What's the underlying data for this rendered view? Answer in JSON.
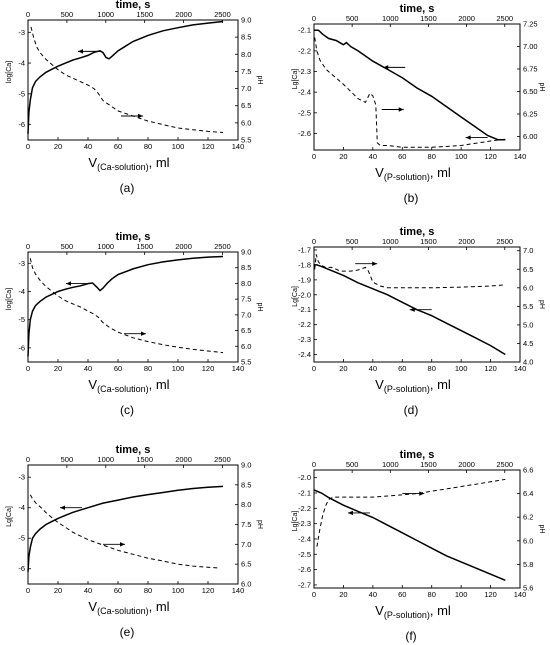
{
  "chart_data": [
    {
      "id": "a",
      "type": "line",
      "panel_label": "(a)",
      "top_title": "time, s",
      "xlabel_main": "V",
      "xlabel_sub": "(Ca-solution)",
      "xlabel_unit": ", ml",
      "ylabel_left": "log[Ca]",
      "ylabel_right": "pH",
      "xlim": [
        0,
        140
      ],
      "xticks": [
        "0",
        "20",
        "40",
        "60",
        "80",
        "100",
        "120",
        "140"
      ],
      "topxlim": [
        0,
        2700
      ],
      "topticks": [
        "0",
        "500",
        "1000",
        "1500",
        "2000",
        "2500"
      ],
      "ylim_left": [
        -6.5,
        -2.6
      ],
      "yticks_left": [
        "-6",
        "-5",
        "-4",
        "-3"
      ],
      "ylim_right": [
        5.5,
        9.0
      ],
      "yticks_right": [
        "5.5",
        "6.0",
        "6.5",
        "7.0",
        "7.5",
        "8.0",
        "8.5",
        "9.0"
      ],
      "series": [
        {
          "axis": "left",
          "style": "solid",
          "x": [
            0,
            0.6,
            1.5,
            3,
            5,
            8,
            12,
            16,
            20,
            25,
            30,
            35,
            40,
            44,
            48,
            50,
            52,
            54,
            56,
            60,
            65,
            70,
            80,
            90,
            100,
            110,
            120,
            130
          ],
          "y": [
            -6.3,
            -5.6,
            -5.2,
            -4.8,
            -4.6,
            -4.45,
            -4.3,
            -4.2,
            -4.1,
            -4.0,
            -3.9,
            -3.83,
            -3.75,
            -3.65,
            -3.6,
            -3.66,
            -3.82,
            -3.86,
            -3.78,
            -3.6,
            -3.45,
            -3.3,
            -3.1,
            -2.95,
            -2.85,
            -2.76,
            -2.7,
            -2.65
          ]
        },
        {
          "axis": "right",
          "style": "dashed",
          "x": [
            2,
            4,
            6,
            8,
            12,
            16,
            20,
            25,
            30,
            35,
            40,
            44,
            47,
            50,
            55,
            60,
            70,
            80,
            90,
            100,
            110,
            120,
            130
          ],
          "y": [
            8.8,
            8.45,
            8.2,
            8.05,
            7.85,
            7.7,
            7.55,
            7.4,
            7.3,
            7.2,
            7.1,
            7.0,
            6.85,
            6.65,
            6.5,
            6.35,
            6.2,
            6.05,
            5.95,
            5.85,
            5.8,
            5.75,
            5.72
          ]
        }
      ],
      "arrows": [
        {
          "x": 48,
          "y": -3.62,
          "dir": "left"
        },
        {
          "x": 62,
          "y": 6.2,
          "dir": "right",
          "axis": "right"
        }
      ]
    },
    {
      "id": "b",
      "type": "line",
      "panel_label": "(b)",
      "top_title": "time, s",
      "xlabel_main": "V",
      "xlabel_sub": "(P-solution)",
      "xlabel_unit": ", ml",
      "ylabel_left": "Lg[Ca]",
      "ylabel_right": "pH",
      "xlim": [
        0,
        140
      ],
      "xticks": [
        "0",
        "20",
        "40",
        "60",
        "80",
        "100",
        "120",
        "140"
      ],
      "topxlim": [
        0,
        2700
      ],
      "topticks": [
        "0",
        "500",
        "1000",
        "1500",
        "2000",
        "2500"
      ],
      "ylim_left": [
        -2.68,
        -2.07
      ],
      "yticks_left": [
        "-2.1",
        "-2.2",
        "-2.3",
        "-2.4",
        "-2.5",
        "-2.6"
      ],
      "ylim_right": [
        5.85,
        7.25
      ],
      "yticks_right": [
        "6.00",
        "6.25",
        "6.50",
        "6.75",
        "7.00",
        "7.25"
      ],
      "series": [
        {
          "axis": "left",
          "style": "solid",
          "x": [
            0,
            3,
            6,
            10,
            15,
            20,
            22,
            25,
            30,
            40,
            50,
            60,
            70,
            80,
            90,
            100,
            110,
            118,
            125,
            130
          ],
          "y": [
            -2.1,
            -2.1,
            -2.12,
            -2.14,
            -2.15,
            -2.17,
            -2.16,
            -2.18,
            -2.2,
            -2.25,
            -2.29,
            -2.33,
            -2.38,
            -2.42,
            -2.47,
            -2.52,
            -2.57,
            -2.61,
            -2.63,
            -2.63
          ]
        },
        {
          "axis": "right",
          "style": "dashed",
          "x": [
            0.5,
            2,
            4,
            6,
            8,
            10,
            15,
            20,
            25,
            30,
            35,
            38,
            40,
            42,
            43,
            45,
            50,
            60,
            80,
            100,
            120,
            130
          ],
          "y": [
            7.1,
            6.95,
            6.85,
            6.8,
            6.75,
            6.72,
            6.65,
            6.58,
            6.5,
            6.42,
            6.38,
            6.48,
            6.45,
            6.35,
            5.93,
            5.9,
            5.9,
            5.88,
            5.88,
            5.9,
            5.95,
            5.97
          ]
        }
      ],
      "arrows": [
        {
          "x": 62,
          "y": -2.28,
          "dir": "left"
        },
        {
          "x": 46,
          "y": 6.3,
          "dir": "right",
          "axis": "right"
        },
        {
          "x": 118,
          "y": -2.62,
          "dir": "left"
        }
      ]
    },
    {
      "id": "c",
      "type": "line",
      "panel_label": "(c)",
      "top_title": "time, s",
      "xlabel_main": "V",
      "xlabel_sub": "(Ca-solution)",
      "xlabel_unit": ", ml",
      "ylabel_left": "log[Ca]",
      "ylabel_right": "pH",
      "xlim": [
        0,
        140
      ],
      "xticks": [
        "0",
        "20",
        "40",
        "60",
        "80",
        "100",
        "120",
        "140"
      ],
      "topxlim": [
        0,
        2700
      ],
      "topticks": [
        "0",
        "500",
        "1000",
        "1500",
        "2000",
        "2500"
      ],
      "ylim_left": [
        -6.5,
        -2.6
      ],
      "yticks_left": [
        "-6",
        "-5",
        "-4",
        "-3"
      ],
      "ylim_right": [
        5.5,
        9.0
      ],
      "yticks_right": [
        "5.5",
        "6.0",
        "6.5",
        "7.0",
        "7.5",
        "8.0",
        "8.5",
        "9.0"
      ],
      "series": [
        {
          "axis": "left",
          "style": "solid",
          "x": [
            0,
            0.6,
            1.5,
            3,
            5,
            8,
            12,
            16,
            20,
            25,
            30,
            35,
            40,
            43,
            46,
            48,
            50,
            53,
            56,
            60,
            70,
            80,
            90,
            100,
            110,
            120,
            130
          ],
          "y": [
            -6.3,
            -5.5,
            -5.0,
            -4.7,
            -4.5,
            -4.35,
            -4.2,
            -4.1,
            -4.0,
            -3.92,
            -3.85,
            -3.8,
            -3.72,
            -3.7,
            -3.85,
            -3.97,
            -3.88,
            -3.7,
            -3.55,
            -3.4,
            -3.2,
            -3.05,
            -2.95,
            -2.88,
            -2.82,
            -2.78,
            -2.76
          ]
        },
        {
          "axis": "right",
          "style": "dashed",
          "x": [
            1.5,
            3,
            5,
            8,
            12,
            16,
            20,
            25,
            30,
            35,
            40,
            44,
            47,
            50,
            55,
            60,
            70,
            80,
            90,
            100,
            110,
            120,
            130
          ],
          "y": [
            8.8,
            8.5,
            8.3,
            8.1,
            7.9,
            7.75,
            7.6,
            7.45,
            7.35,
            7.25,
            7.12,
            7.02,
            6.92,
            6.75,
            6.58,
            6.45,
            6.27,
            6.15,
            6.05,
            5.97,
            5.9,
            5.85,
            5.8
          ]
        }
      ],
      "arrows": [
        {
          "x": 40,
          "y": -3.72,
          "dir": "left"
        },
        {
          "x": 64,
          "y": 6.4,
          "dir": "right",
          "axis": "right"
        }
      ]
    },
    {
      "id": "d",
      "type": "line",
      "panel_label": "(d)",
      "top_title": "time, s",
      "xlabel_main": "V",
      "xlabel_sub": "(P-solution)",
      "xlabel_unit": ", ml",
      "ylabel_left": "Lg[Ca]",
      "ylabel_right": "pH",
      "xlim": [
        0,
        140
      ],
      "xticks": [
        "0",
        "20",
        "40",
        "60",
        "80",
        "100",
        "120",
        "140"
      ],
      "topxlim": [
        0,
        2700
      ],
      "topticks": [
        "0",
        "500",
        "1000",
        "1500",
        "2000",
        "2500"
      ],
      "ylim_left": [
        -2.45,
        -1.68
      ],
      "yticks_left": [
        "-1.7",
        "-1.8",
        "-1.9",
        "-2.0",
        "-2.1",
        "-2.2",
        "-2.3",
        "-2.4"
      ],
      "ylim_right": [
        4.0,
        7.1
      ],
      "yticks_right": [
        "4.0",
        "4.5",
        "5.0",
        "5.5",
        "6.0",
        "6.5",
        "7.0"
      ],
      "series": [
        {
          "axis": "left",
          "style": "solid",
          "x": [
            0,
            2,
            5,
            10,
            20,
            30,
            40,
            50,
            60,
            70,
            80,
            90,
            100,
            110,
            120,
            130
          ],
          "y": [
            -1.8,
            -1.8,
            -1.81,
            -1.83,
            -1.87,
            -1.92,
            -1.96,
            -2.0,
            -2.05,
            -2.1,
            -2.14,
            -2.19,
            -2.24,
            -2.29,
            -2.34,
            -2.4
          ]
        },
        {
          "axis": "right",
          "style": "dashed",
          "x": [
            0.5,
            1.5,
            3,
            5,
            8,
            12,
            18,
            25,
            30,
            35,
            37,
            40,
            45,
            50,
            60,
            80,
            100,
            120,
            130
          ],
          "y": [
            6.5,
            6.9,
            6.7,
            6.6,
            6.55,
            6.55,
            6.45,
            6.45,
            6.48,
            6.55,
            6.45,
            6.15,
            6.05,
            6.0,
            6.0,
            6.0,
            6.02,
            6.05,
            6.08
          ]
        }
      ],
      "arrows": [
        {
          "x": 28,
          "y": 6.65,
          "dir": "right",
          "axis": "right"
        },
        {
          "x": 80,
          "y": -2.1,
          "dir": "left"
        }
      ]
    },
    {
      "id": "e",
      "type": "line",
      "panel_label": "(e)",
      "top_title": "time, s",
      "xlabel_main": "V",
      "xlabel_sub": "(Ca-solution)",
      "xlabel_unit": ", ml",
      "ylabel_left": "Lg[Ca]",
      "ylabel_right": "pH",
      "xlim": [
        0,
        140
      ],
      "xticks": [
        "0",
        "20",
        "40",
        "60",
        "80",
        "100",
        "120",
        "140"
      ],
      "topxlim": [
        0,
        2700
      ],
      "topticks": [
        "0",
        "500",
        "1000",
        "1500",
        "2000",
        "2500"
      ],
      "ylim_left": [
        -6.5,
        -2.6
      ],
      "yticks_left": [
        "-6",
        "-5",
        "-4",
        "-3"
      ],
      "ylim_right": [
        6.0,
        9.0
      ],
      "yticks_right": [
        "6.0",
        "6.5",
        "7.0",
        "7.5",
        "8.0",
        "8.5",
        "9.0"
      ],
      "series": [
        {
          "axis": "left",
          "style": "solid",
          "x": [
            0,
            0.6,
            1.5,
            3,
            5,
            8,
            12,
            16,
            20,
            25,
            30,
            40,
            50,
            60,
            70,
            80,
            90,
            100,
            110,
            120,
            130
          ],
          "y": [
            -6.1,
            -5.6,
            -5.3,
            -5.0,
            -4.85,
            -4.7,
            -4.55,
            -4.45,
            -4.35,
            -4.25,
            -4.15,
            -4.0,
            -3.85,
            -3.75,
            -3.65,
            -3.57,
            -3.5,
            -3.43,
            -3.37,
            -3.33,
            -3.3
          ]
        },
        {
          "axis": "right",
          "style": "dashed",
          "x": [
            1.5,
            3,
            5,
            8,
            12,
            16,
            20,
            25,
            30,
            40,
            50,
            60,
            70,
            80,
            90,
            100,
            110,
            120,
            128
          ],
          "y": [
            8.25,
            8.15,
            8.05,
            7.95,
            7.8,
            7.67,
            7.55,
            7.43,
            7.3,
            7.12,
            6.98,
            6.85,
            6.75,
            6.65,
            6.58,
            6.5,
            6.45,
            6.42,
            6.4
          ]
        }
      ],
      "arrows": [
        {
          "x": 36,
          "y": -4.0,
          "dir": "left"
        },
        {
          "x": 50,
          "y": 7.0,
          "dir": "right",
          "axis": "right"
        }
      ]
    },
    {
      "id": "f",
      "type": "line",
      "panel_label": "(f)",
      "top_title": "time, s",
      "xlabel_main": "V",
      "xlabel_sub": "(P-solution)",
      "xlabel_unit": ", ml",
      "ylabel_left": "Lg[Ca]",
      "ylabel_right": "pH",
      "xlim": [
        0,
        140
      ],
      "xticks": [
        "0",
        "20",
        "40",
        "60",
        "80",
        "100",
        "120",
        "140"
      ],
      "topxlim": [
        0,
        2700
      ],
      "topticks": [
        "0",
        "500",
        "1000",
        "1500",
        "2000",
        "2500"
      ],
      "ylim_left": [
        -2.72,
        -1.95
      ],
      "yticks_left": [
        "-2.0",
        "-2.1",
        "-2.2",
        "-2.3",
        "-2.4",
        "-2.5",
        "-2.6",
        "-2.7"
      ],
      "ylim_right": [
        5.6,
        6.6
      ],
      "yticks_right": [
        "5.6",
        "5.8",
        "6.0",
        "6.2",
        "6.4",
        "6.6"
      ],
      "series": [
        {
          "axis": "left",
          "style": "solid",
          "x": [
            0,
            5,
            10,
            20,
            30,
            40,
            50,
            60,
            70,
            80,
            90,
            100,
            110,
            120,
            130
          ],
          "y": [
            -2.08,
            -2.1,
            -2.13,
            -2.18,
            -2.22,
            -2.26,
            -2.31,
            -2.36,
            -2.41,
            -2.46,
            -2.51,
            -2.55,
            -2.59,
            -2.63,
            -2.67
          ]
        },
        {
          "axis": "right",
          "style": "dashed",
          "x": [
            2,
            4,
            6,
            8,
            10,
            13,
            16,
            20,
            30,
            40,
            50,
            60,
            70,
            80,
            90,
            100,
            110,
            120,
            130
          ],
          "y": [
            5.95,
            6.1,
            6.22,
            6.3,
            6.35,
            6.37,
            6.37,
            6.37,
            6.37,
            6.37,
            6.38,
            6.39,
            6.4,
            6.42,
            6.44,
            6.46,
            6.48,
            6.5,
            6.52
          ]
        }
      ],
      "arrows": [
        {
          "x": 60,
          "y": 6.4,
          "dir": "right",
          "axis": "right"
        },
        {
          "x": 38,
          "y": -2.23,
          "dir": "left"
        }
      ]
    }
  ]
}
